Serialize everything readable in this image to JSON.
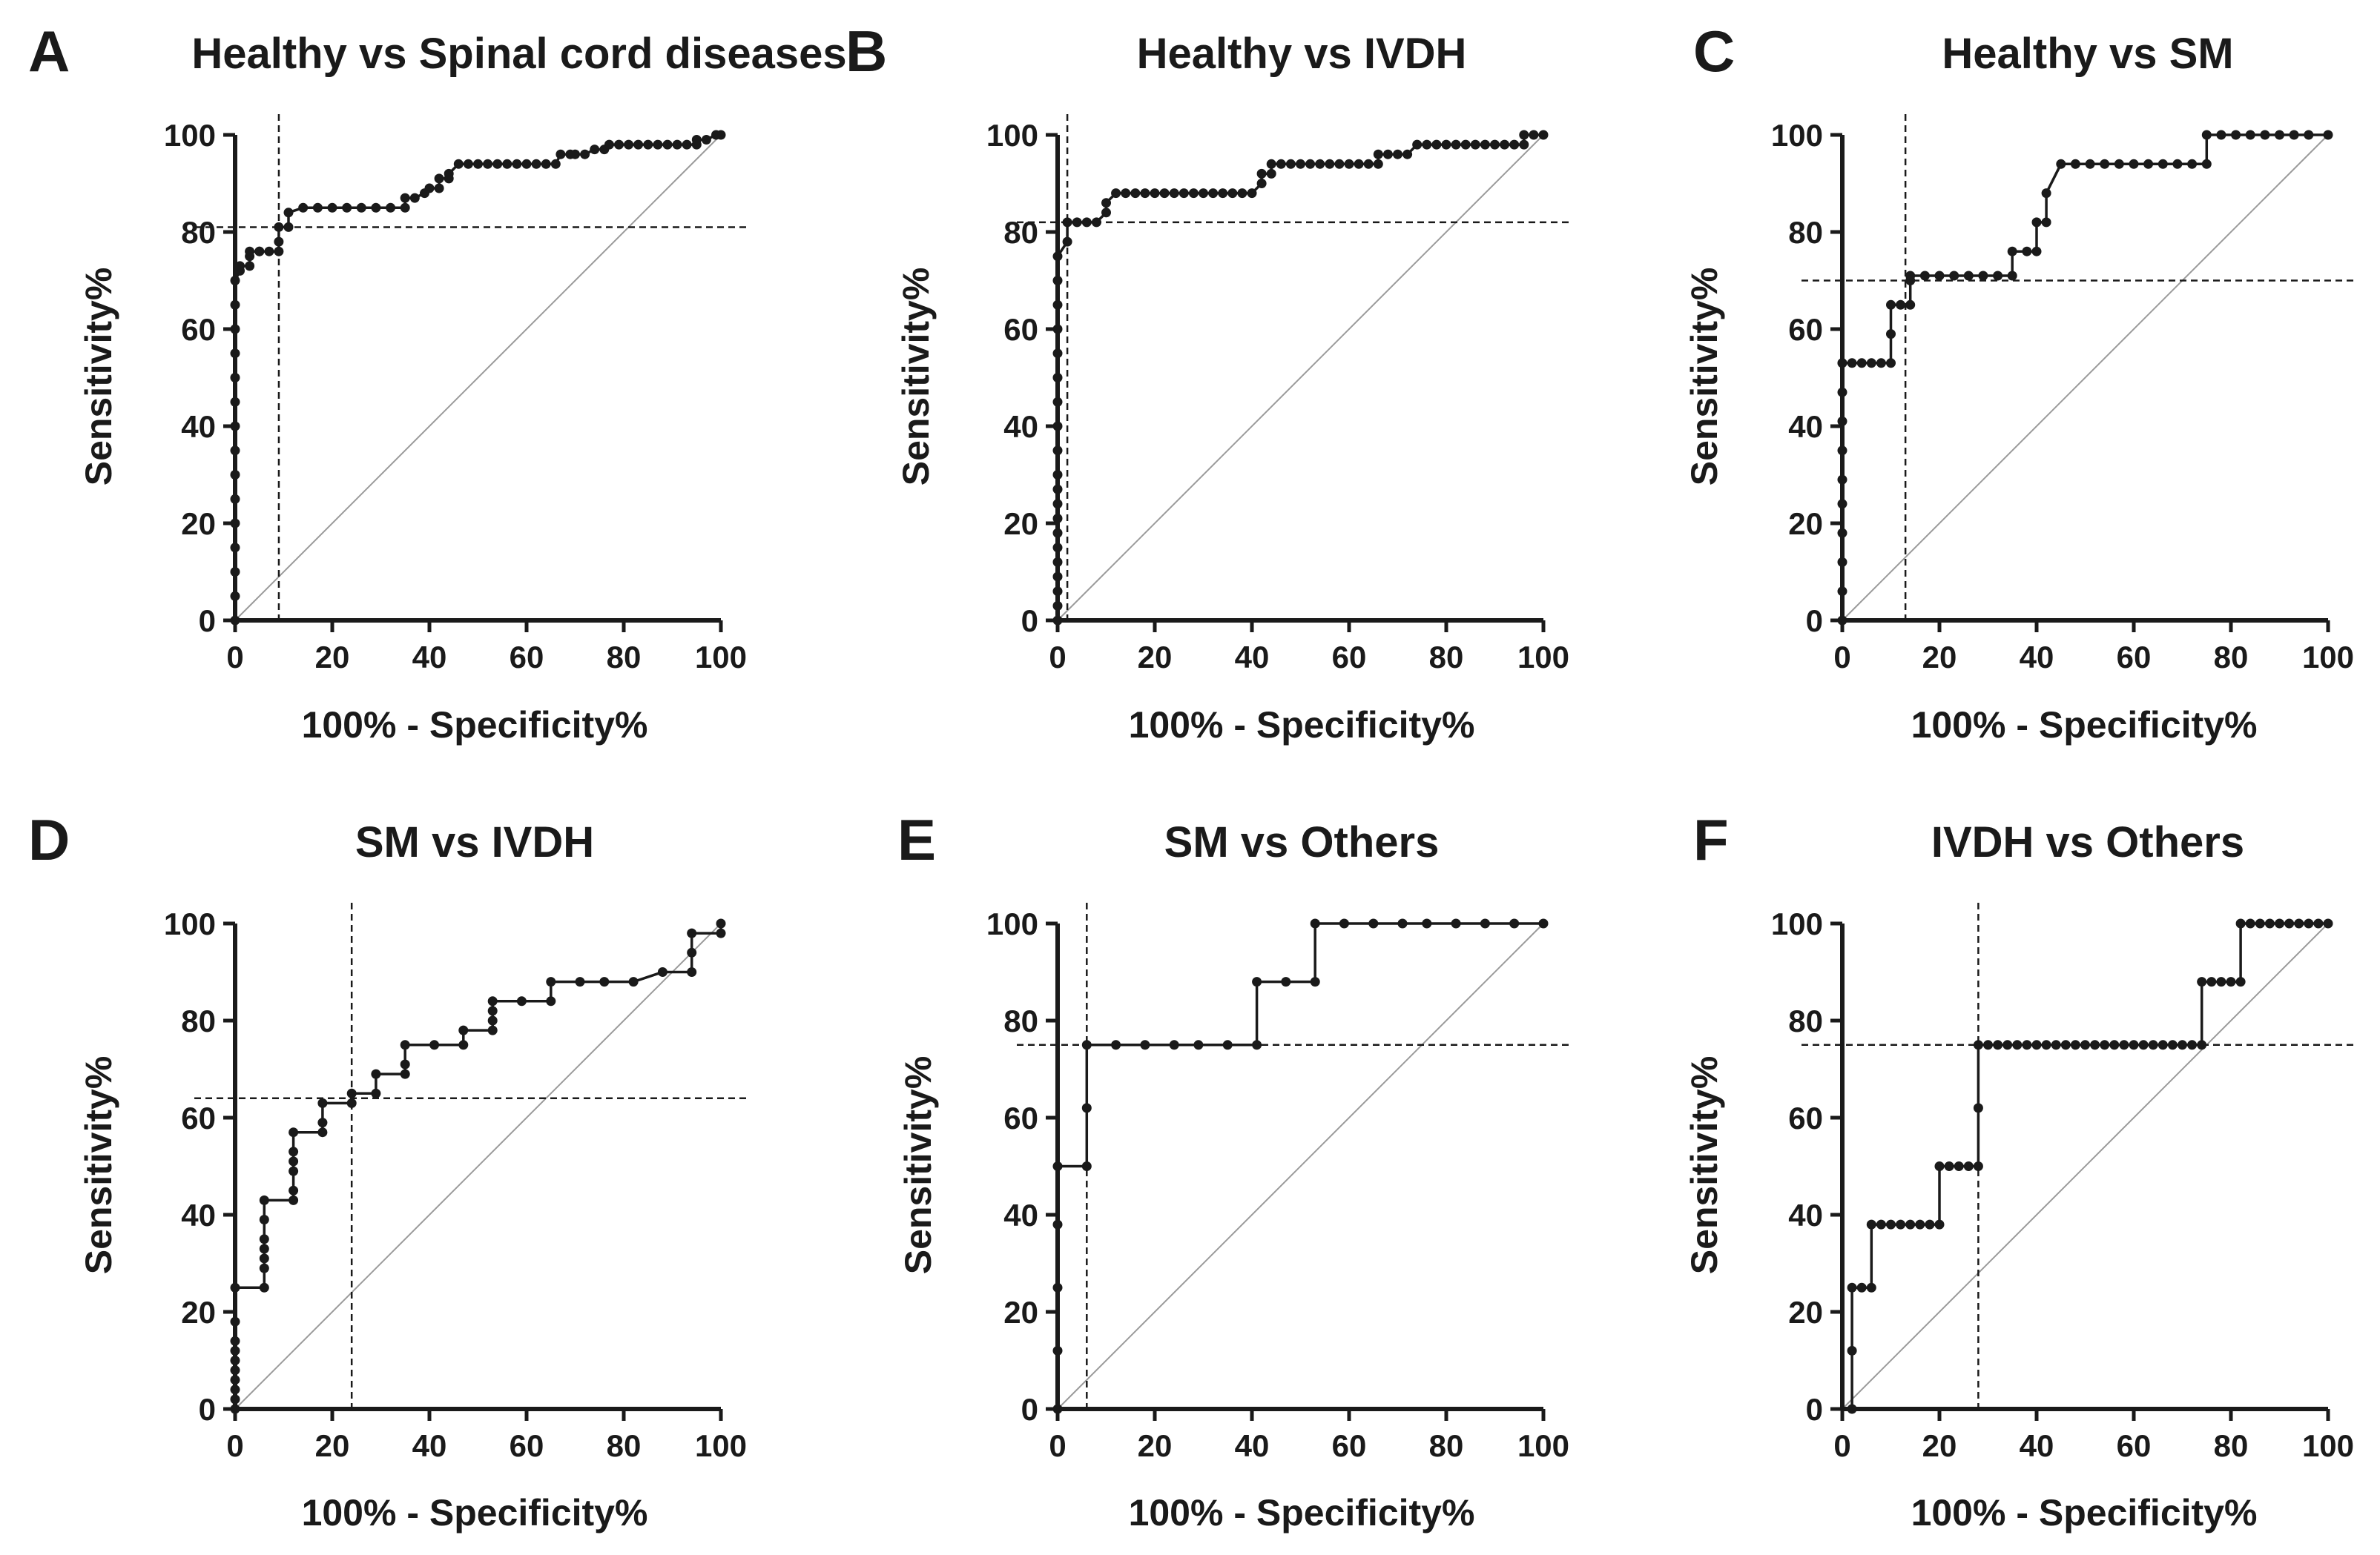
{
  "colors": {
    "curve": "#1a1a1a",
    "reference": "#9a9a9a",
    "cutoff": "#1a1a1a",
    "background": "#ffffff"
  },
  "chart_data": [
    {
      "type": "line",
      "panel_letter": "A",
      "title": "Healthy vs Spinal cord diseases",
      "xlabel": "100% - Specificity%",
      "ylabel": "Sensitivity%",
      "xlim": [
        0,
        100
      ],
      "ylim": [
        0,
        100
      ],
      "xticks": [
        "0",
        "20",
        "40",
        "60",
        "80",
        "100"
      ],
      "yticks": [
        "0",
        "20",
        "40",
        "60",
        "80",
        "100"
      ],
      "roc": {
        "x": [
          0,
          0,
          0,
          0,
          0,
          0,
          0,
          0,
          0,
          0,
          0,
          0,
          0,
          0,
          0,
          1,
          1,
          3,
          3,
          3,
          5,
          5,
          7,
          9,
          9,
          9,
          11,
          11,
          14,
          17,
          20,
          23,
          26,
          29,
          32,
          35,
          35,
          37,
          39,
          40,
          42,
          42,
          44,
          44,
          46,
          48,
          50,
          52,
          54,
          56,
          58,
          60,
          62,
          64,
          66,
          67,
          69,
          70,
          72,
          74,
          76,
          77,
          79,
          81,
          83,
          85,
          87,
          89,
          91,
          93,
          95,
          95,
          97,
          99,
          100
        ],
        "y": [
          0,
          5,
          10,
          15,
          20,
          25,
          30,
          35,
          40,
          45,
          50,
          55,
          60,
          65,
          70,
          72,
          73,
          73,
          75,
          76,
          76,
          76,
          76,
          76,
          78,
          81,
          81,
          84,
          85,
          85,
          85,
          85,
          85,
          85,
          85,
          85,
          87,
          87,
          88,
          89,
          89,
          91,
          91,
          92,
          94,
          94,
          94,
          94,
          94,
          94,
          94,
          94,
          94,
          94,
          94,
          96,
          96,
          96,
          96,
          97,
          97,
          98,
          98,
          98,
          98,
          98,
          98,
          98,
          98,
          98,
          98,
          99,
          99,
          100,
          100
        ]
      },
      "cutoff": {
        "sensitivity": 81,
        "one_minus_specificity": 9
      }
    },
    {
      "type": "line",
      "panel_letter": "B",
      "title": "Healthy vs IVDH",
      "xlabel": "100% - Specificity%",
      "ylabel": "Sensitivity%",
      "xlim": [
        0,
        100
      ],
      "ylim": [
        0,
        100
      ],
      "xticks": [
        "0",
        "20",
        "40",
        "60",
        "80",
        "100"
      ],
      "yticks": [
        "0",
        "20",
        "40",
        "60",
        "80",
        "100"
      ],
      "roc": {
        "x": [
          0,
          0,
          0,
          0,
          0,
          0,
          0,
          0,
          0,
          0,
          0,
          0,
          0,
          0,
          0,
          0,
          0,
          0,
          0,
          0,
          2,
          2,
          4,
          6,
          8,
          10,
          10,
          12,
          14,
          16,
          18,
          20,
          22,
          24,
          26,
          28,
          30,
          32,
          34,
          36,
          38,
          40,
          42,
          42,
          44,
          44,
          46,
          48,
          50,
          52,
          54,
          56,
          58,
          60,
          62,
          64,
          66,
          66,
          68,
          70,
          72,
          74,
          76,
          78,
          80,
          82,
          84,
          86,
          88,
          90,
          92,
          94,
          96,
          96,
          98,
          100
        ],
        "y": [
          0,
          3,
          6,
          9,
          12,
          15,
          18,
          21,
          24,
          27,
          30,
          35,
          40,
          45,
          50,
          55,
          60,
          65,
          70,
          75,
          78,
          82,
          82,
          82,
          82,
          84,
          86,
          88,
          88,
          88,
          88,
          88,
          88,
          88,
          88,
          88,
          88,
          88,
          88,
          88,
          88,
          88,
          90,
          92,
          92,
          94,
          94,
          94,
          94,
          94,
          94,
          94,
          94,
          94,
          94,
          94,
          94,
          96,
          96,
          96,
          96,
          98,
          98,
          98,
          98,
          98,
          98,
          98,
          98,
          98,
          98,
          98,
          98,
          100,
          100,
          100
        ]
      },
      "cutoff": {
        "sensitivity": 82,
        "one_minus_specificity": 2
      }
    },
    {
      "type": "line",
      "panel_letter": "C",
      "title": "Healthy vs SM",
      "xlabel": "100% - Specificity%",
      "ylabel": "Sensitivity%",
      "xlim": [
        0,
        100
      ],
      "ylim": [
        0,
        100
      ],
      "xticks": [
        "0",
        "20",
        "40",
        "60",
        "80",
        "100"
      ],
      "yticks": [
        "0",
        "20",
        "40",
        "60",
        "80",
        "100"
      ],
      "roc": {
        "x": [
          0,
          0,
          0,
          0,
          0,
          0,
          0,
          0,
          0,
          0,
          0,
          2,
          4,
          6,
          8,
          10,
          10,
          10,
          12,
          14,
          14,
          14,
          17,
          20,
          23,
          26,
          29,
          32,
          35,
          35,
          38,
          40,
          40,
          42,
          42,
          45,
          48,
          51,
          54,
          57,
          60,
          63,
          66,
          69,
          72,
          75,
          75,
          78,
          81,
          84,
          87,
          90,
          93,
          96,
          100
        ],
        "y": [
          0,
          6,
          12,
          18,
          24,
          29,
          35,
          41,
          47,
          53,
          53,
          53,
          53,
          53,
          53,
          53,
          59,
          65,
          65,
          65,
          70,
          71,
          71,
          71,
          71,
          71,
          71,
          71,
          71,
          76,
          76,
          76,
          82,
          82,
          88,
          94,
          94,
          94,
          94,
          94,
          94,
          94,
          94,
          94,
          94,
          94,
          100,
          100,
          100,
          100,
          100,
          100,
          100,
          100,
          100
        ]
      },
      "cutoff": {
        "sensitivity": 70,
        "one_minus_specificity": 13
      }
    },
    {
      "type": "line",
      "panel_letter": "D",
      "title": "SM vs IVDH",
      "xlabel": "100% - Specificity%",
      "ylabel": "Sensitivity%",
      "xlim": [
        0,
        100
      ],
      "ylim": [
        0,
        100
      ],
      "xticks": [
        "0",
        "20",
        "40",
        "60",
        "80",
        "100"
      ],
      "yticks": [
        "0",
        "20",
        "40",
        "60",
        "80",
        "100"
      ],
      "roc": {
        "x": [
          0,
          0,
          0,
          0,
          0,
          0,
          0,
          0,
          0,
          0,
          6,
          6,
          6,
          6,
          6,
          6,
          6,
          12,
          12,
          12,
          12,
          12,
          12,
          18,
          18,
          18,
          24,
          24,
          29,
          29,
          35,
          35,
          35,
          41,
          47,
          47,
          53,
          53,
          53,
          53,
          59,
          65,
          65,
          71,
          76,
          82,
          88,
          94,
          94,
          94,
          100,
          100
        ],
        "y": [
          0,
          2,
          4,
          6,
          8,
          10,
          12,
          14,
          18,
          25,
          25,
          29,
          31,
          33,
          35,
          39,
          43,
          43,
          45,
          49,
          51,
          53,
          57,
          57,
          59,
          63,
          63,
          65,
          65,
          69,
          69,
          71,
          75,
          75,
          75,
          78,
          78,
          80,
          82,
          84,
          84,
          84,
          88,
          88,
          88,
          88,
          90,
          90,
          94,
          98,
          98,
          100
        ]
      },
      "cutoff": {
        "sensitivity": 64,
        "one_minus_specificity": 24
      }
    },
    {
      "type": "line",
      "panel_letter": "E",
      "title": "SM vs Others",
      "xlabel": "100% - Specificity%",
      "ylabel": "Sensitivity%",
      "xlim": [
        0,
        100
      ],
      "ylim": [
        0,
        100
      ],
      "xticks": [
        "0",
        "20",
        "40",
        "60",
        "80",
        "100"
      ],
      "yticks": [
        "0",
        "20",
        "40",
        "60",
        "80",
        "100"
      ],
      "roc": {
        "x": [
          0,
          0,
          0,
          0,
          0,
          6,
          6,
          6,
          12,
          18,
          24,
          29,
          35,
          41,
          41,
          47,
          53,
          53,
          59,
          65,
          71,
          76,
          82,
          88,
          94,
          100
        ],
        "y": [
          0,
          12,
          25,
          38,
          50,
          50,
          62,
          75,
          75,
          75,
          75,
          75,
          75,
          75,
          88,
          88,
          88,
          100,
          100,
          100,
          100,
          100,
          100,
          100,
          100,
          100
        ]
      },
      "cutoff": {
        "sensitivity": 75,
        "one_minus_specificity": 6
      }
    },
    {
      "type": "line",
      "panel_letter": "F",
      "title": "IVDH vs Others",
      "xlabel": "100% - Specificity%",
      "ylabel": "Sensitivity%",
      "xlim": [
        0,
        100
      ],
      "ylim": [
        0,
        100
      ],
      "xticks": [
        "0",
        "20",
        "40",
        "60",
        "80",
        "100"
      ],
      "yticks": [
        "0",
        "20",
        "40",
        "60",
        "80",
        "100"
      ],
      "roc": {
        "x": [
          2,
          2,
          2,
          4,
          6,
          6,
          8,
          10,
          12,
          14,
          16,
          18,
          20,
          20,
          22,
          24,
          26,
          28,
          28,
          28,
          30,
          32,
          34,
          36,
          38,
          40,
          42,
          44,
          46,
          48,
          50,
          52,
          54,
          56,
          58,
          60,
          62,
          64,
          66,
          68,
          70,
          72,
          74,
          74,
          76,
          78,
          80,
          82,
          82,
          84,
          86,
          88,
          90,
          92,
          94,
          96,
          98,
          100
        ],
        "y": [
          0,
          12,
          25,
          25,
          25,
          38,
          38,
          38,
          38,
          38,
          38,
          38,
          38,
          50,
          50,
          50,
          50,
          50,
          62,
          75,
          75,
          75,
          75,
          75,
          75,
          75,
          75,
          75,
          75,
          75,
          75,
          75,
          75,
          75,
          75,
          75,
          75,
          75,
          75,
          75,
          75,
          75,
          75,
          88,
          88,
          88,
          88,
          88,
          100,
          100,
          100,
          100,
          100,
          100,
          100,
          100,
          100,
          100
        ]
      },
      "cutoff": {
        "sensitivity": 75,
        "one_minus_specificity": 28
      }
    }
  ]
}
